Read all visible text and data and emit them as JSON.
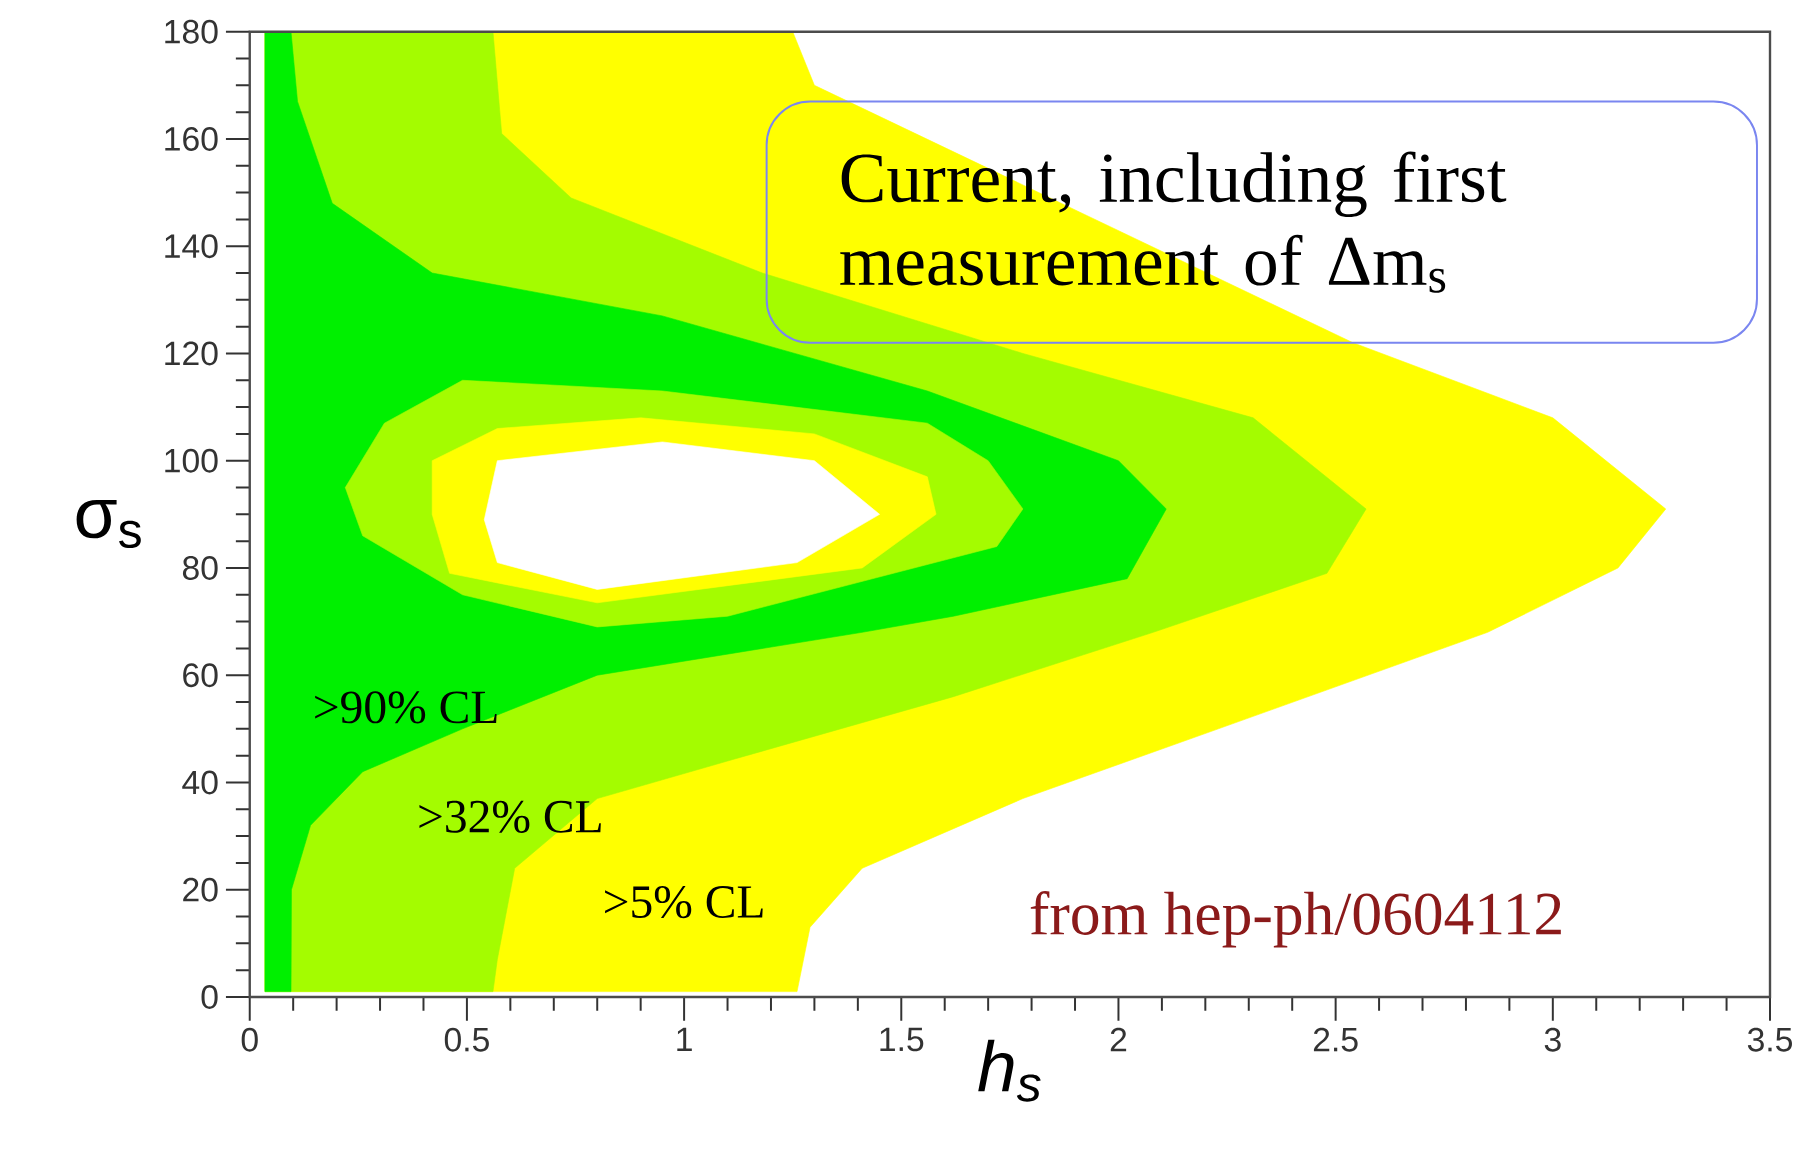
{
  "chart_data": {
    "type": "area",
    "xlabel": "h$_{s}$",
    "ylabel": "σ$_{s}$",
    "annotations": [
      "Current, including first measurement  of Δm$_{s}$",
      "from hep-ph/0604112"
    ],
    "xlim": [
      0,
      3.5
    ],
    "ylim": [
      0,
      180
    ],
    "xticks": [
      0,
      0.5,
      1,
      1.5,
      2,
      2.5,
      3,
      3.5
    ],
    "yticks": [
      0,
      20,
      40,
      60,
      80,
      100,
      120,
      140,
      160,
      180
    ],
    "series": [
      {
        "name": ">5% CL",
        "color": "#ffff00",
        "x": [
          0.035,
          0.035,
          1.25,
          1.3,
          2.54,
          3.0,
          3.26,
          3.15,
          2.85,
          2.23,
          1.78,
          1.41,
          1.29,
          1.26
        ],
        "values": [
          1,
          180,
          180,
          170,
          122,
          108,
          91,
          80,
          68,
          50,
          37,
          24,
          13,
          1
        ]
      },
      {
        "name": ">32% CL",
        "color": "#a4fc00",
        "x": [
          0.035,
          0.035,
          0.56,
          0.58,
          0.74,
          1.18,
          1.78,
          2.31,
          2.57,
          2.48,
          2.08,
          1.62,
          1.1,
          0.8,
          0.61,
          0.57,
          0.56
        ],
        "values": [
          1,
          180,
          180,
          161,
          149,
          135,
          120,
          108,
          91,
          79,
          68,
          56,
          44,
          37,
          24,
          7,
          1
        ]
      },
      {
        "name": ">90% CL",
        "color": "#00f000",
        "x": [
          0.035,
          0.035,
          0.095,
          0.11,
          0.19,
          0.42,
          0.95,
          1.56,
          2.0,
          2.11,
          2.02,
          1.62,
          1.41,
          0.8,
          0.49,
          0.26,
          0.14,
          0.096,
          0.095
        ],
        "values": [
          1,
          180,
          180,
          167,
          148,
          135,
          127,
          113,
          100,
          91,
          78,
          71,
          68,
          60,
          50,
          42,
          32,
          20,
          1
        ]
      },
      {
        "color": "#a4fc00",
        "x": [
          0.22,
          0.31,
          0.49,
          0.95,
          1.56,
          1.7,
          1.78,
          1.72,
          1.1,
          0.8,
          0.49,
          0.26
        ],
        "values": [
          95,
          107,
          115,
          113,
          107,
          100,
          91,
          84,
          71,
          69,
          75,
          86
        ]
      },
      {
        "color": "#ffff00",
        "x": [
          0.42,
          0.42,
          0.57,
          0.9,
          1.3,
          1.56,
          1.58,
          1.41,
          0.8,
          0.46
        ],
        "values": [
          90,
          100,
          106,
          108,
          105,
          97,
          90,
          80,
          73.5,
          79
        ]
      },
      {
        "color": "#ffffff",
        "x": [
          0.54,
          0.57,
          0.95,
          1.3,
          1.45,
          1.26,
          0.8,
          0.57
        ],
        "values": [
          89,
          100,
          103.5,
          100,
          90,
          81,
          76,
          81
        ]
      }
    ]
  }
}
